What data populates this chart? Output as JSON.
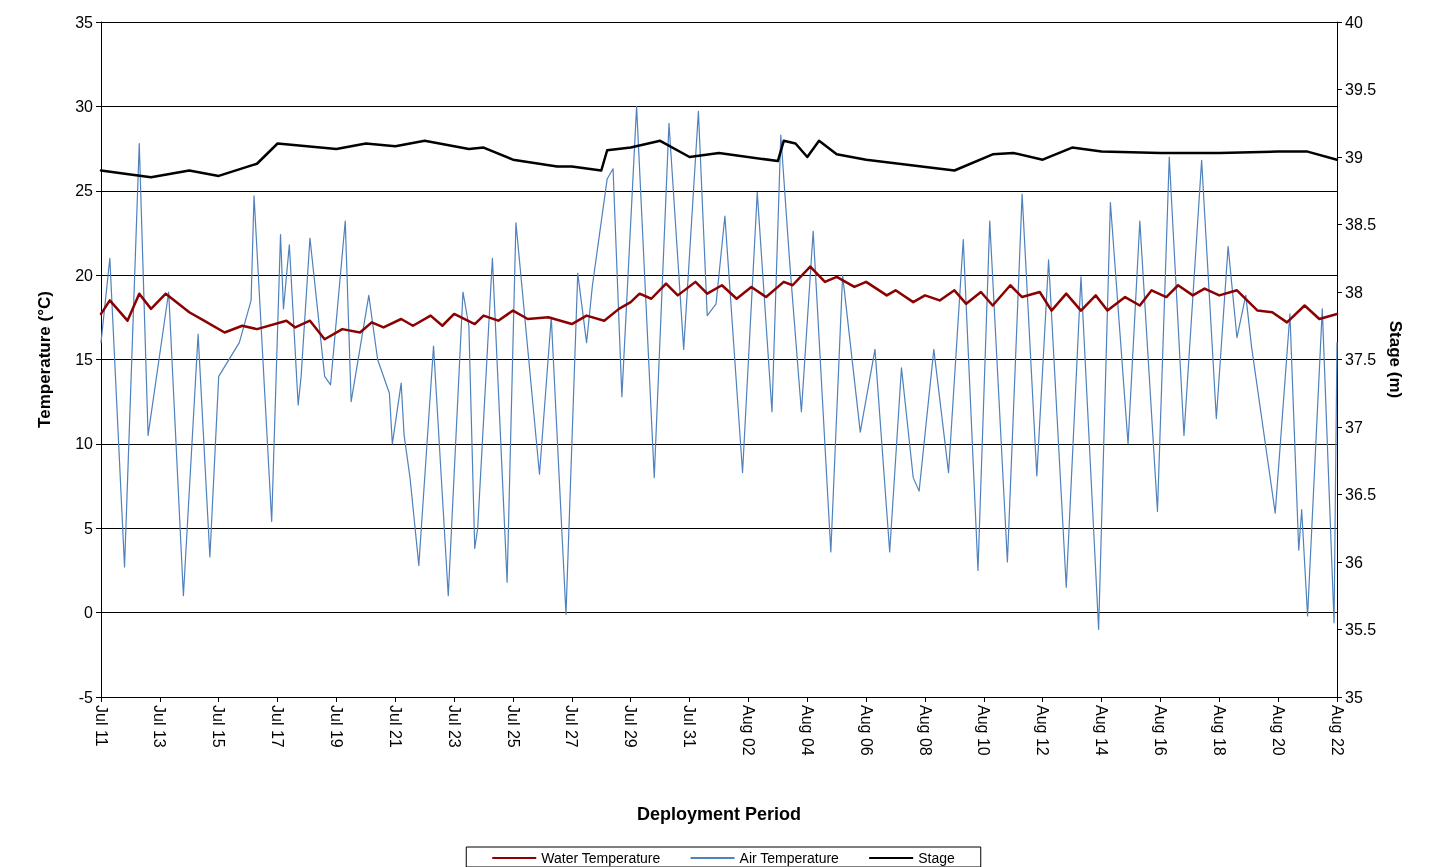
{
  "chart_data": {
    "type": "line",
    "xlabel": "Deployment Period",
    "ylabel": "Temperature (°C)",
    "y2label": "Stage (m)",
    "xlim": [
      "--07-11",
      "--08-22"
    ],
    "xticks": [
      {
        "value": "--07-11",
        "label": "Jul 11"
      },
      {
        "value": "--07-13",
        "label": "Jul 13"
      },
      {
        "value": "--07-15",
        "label": "Jul 15"
      },
      {
        "value": "--07-17",
        "label": "Jul 17"
      },
      {
        "value": "--07-19",
        "label": "Jul 19"
      },
      {
        "value": "--07-21",
        "label": "Jul 21"
      },
      {
        "value": "--07-23",
        "label": "Jul 23"
      },
      {
        "value": "--07-25",
        "label": "Jul 25"
      },
      {
        "value": "--07-27",
        "label": "Jul 27"
      },
      {
        "value": "--07-29",
        "label": "Jul 29"
      },
      {
        "value": "--07-31",
        "label": "Jul 31"
      },
      {
        "value": "--08-02",
        "label": "Aug 02"
      },
      {
        "value": "--08-04",
        "label": "Aug 04"
      },
      {
        "value": "--08-06",
        "label": "Aug 06"
      },
      {
        "value": "--08-08",
        "label": "Aug 08"
      },
      {
        "value": "--08-10",
        "label": "Aug 10"
      },
      {
        "value": "--08-12",
        "label": "Aug 12"
      },
      {
        "value": "--08-14",
        "label": "Aug 14"
      },
      {
        "value": "--08-16",
        "label": "Aug 16"
      },
      {
        "value": "--08-18",
        "label": "Aug 18"
      },
      {
        "value": "--08-20",
        "label": "Aug 20"
      },
      {
        "value": "--08-22",
        "label": "Aug 22"
      }
    ],
    "ylim": [
      -5,
      35
    ],
    "yticks": [
      -5,
      0,
      5,
      10,
      15,
      20,
      25,
      30,
      35
    ],
    "y2lim": [
      35,
      40
    ],
    "y2ticks": [
      35,
      35.5,
      36,
      36.5,
      37,
      37.5,
      38,
      38.5,
      39,
      39.5,
      40
    ],
    "grid": "y",
    "legend": "bottom",
    "marker": "none",
    "line_style": "solid",
    "series": [
      {
        "name": "Water Temperature",
        "color": "#8b0000",
        "x": [
          "--07-11T00:00",
          "--07-11T07:12",
          "--07-11T21:36",
          "--07-12T07:12",
          "--07-12T16:48",
          "--07-13T04:48",
          "--07-14T00:00",
          "--07-14T12:00",
          "--07-15T04:48",
          "--07-15T19:12",
          "--07-16T07:12",
          "--07-17T07:12",
          "--07-17T14:24",
          "--07-18T02:24",
          "--07-18T14:24",
          "--07-19T04:48",
          "--07-19T19:12",
          "--07-20T04:48",
          "--07-20T14:24",
          "--07-21T04:48",
          "--07-21T14:24",
          "--07-22T04:48",
          "--07-22T14:24",
          "--07-23T00:00",
          "--07-23T16:48",
          "--07-24T00:00",
          "--07-24T12:00",
          "--07-25T00:00",
          "--07-25T12:00",
          "--07-26T04:48",
          "--07-27T00:00",
          "--07-27T12:00",
          "--07-28T02:24",
          "--07-28T14:24",
          "--07-29T00:00",
          "--07-29T07:12",
          "--07-29T16:48",
          "--07-30T04:48",
          "--07-30T14:24",
          "--07-31T04:48",
          "--07-31T14:24",
          "--08-01T02:24",
          "--08-01T14:24",
          "--08-02T02:24",
          "--08-02T14:24",
          "--08-03T04:48",
          "--08-03T12:00",
          "--08-04T02:24",
          "--08-04T14:24",
          "--08-05T00:00",
          "--08-05T14:24",
          "--08-06T00:00",
          "--08-06T16:48",
          "--08-07T00:00",
          "--08-07T14:24",
          "--08-08T00:00",
          "--08-08T12:00",
          "--08-09T00:00",
          "--08-09T09:36",
          "--08-09T21:36",
          "--08-10T07:12",
          "--08-10T21:36",
          "--08-11T07:12",
          "--08-11T21:36",
          "--08-12T07:12",
          "--08-12T19:12",
          "--08-13T07:12",
          "--08-13T19:12",
          "--08-14T04:48",
          "--08-14T19:12",
          "--08-15T07:12",
          "--08-15T16:48",
          "--08-16T04:48",
          "--08-16T14:24",
          "--08-17T02:24",
          "--08-17T12:00",
          "--08-18T00:00",
          "--08-18T14:24",
          "--08-19T07:12",
          "--08-19T19:12",
          "--08-20T07:12",
          "--08-20T21:36",
          "--08-21T09:36",
          "--08-22T00:00"
        ],
        "values": [
          17.7,
          18.5,
          17.3,
          18.9,
          18,
          18.9,
          17.8,
          17.3,
          16.6,
          17,
          16.8,
          17.3,
          16.9,
          17.3,
          16.2,
          16.8,
          16.6,
          17.2,
          16.9,
          17.4,
          17,
          17.6,
          17,
          17.7,
          17.1,
          17.6,
          17.3,
          17.9,
          17.4,
          17.5,
          17.1,
          17.6,
          17.3,
          18,
          18.4,
          18.9,
          18.6,
          19.5,
          18.8,
          19.6,
          18.9,
          19.4,
          18.6,
          19.3,
          18.7,
          19.6,
          19.4,
          20.5,
          19.6,
          19.9,
          19.3,
          19.6,
          18.8,
          19.1,
          18.4,
          18.8,
          18.5,
          19.1,
          18.3,
          19,
          18.2,
          19.4,
          18.7,
          19,
          17.9,
          18.9,
          17.9,
          18.8,
          17.9,
          18.7,
          18.2,
          19.1,
          18.7,
          19.4,
          18.8,
          19.2,
          18.8,
          19.1,
          17.9,
          17.8,
          17.2,
          18.2,
          17.4,
          17.7
        ]
      },
      {
        "name": "Air Temperature",
        "color": "#4f81bd",
        "x": [
          "--07-11T00:00",
          "--07-11T07:12",
          "--07-11T19:12",
          "--07-12T07:12",
          "--07-12T14:24",
          "--07-13T07:12",
          "--07-13T19:12",
          "--07-14T07:12",
          "--07-14T16:48",
          "--07-15T00:00",
          "--07-15T16:48",
          "--07-16T02:24",
          "--07-16T04:48",
          "--07-16T19:12",
          "--07-17T02:24",
          "--07-17T04:48",
          "--07-17T09:36",
          "--07-17T16:48",
          "--07-17T19:12",
          "--07-18T02:24",
          "--07-18T14:24",
          "--07-18T19:12",
          "--07-19T07:12",
          "--07-19T12:00",
          "--07-20T02:24",
          "--07-20T09:36",
          "--07-20T19:12",
          "--07-20T21:36",
          "--07-21T04:48",
          "--07-21T07:12",
          "--07-21T12:00",
          "--07-21T19:12",
          "--07-22T07:12",
          "--07-22T19:12",
          "--07-23T07:12",
          "--07-23T12:00",
          "--07-23T16:48",
          "--07-23T19:12",
          "--07-24T07:12",
          "--07-24T19:12",
          "--07-25T02:24",
          "--07-25T21:36",
          "--07-26T07:12",
          "--07-26T19:12",
          "--07-27T04:48",
          "--07-27T12:00",
          "--07-27T16:48",
          "--07-28T04:48",
          "--07-28T09:36",
          "--07-28T16:48",
          "--07-29T04:48",
          "--07-29T19:12",
          "--07-30T07:12",
          "--07-30T19:12",
          "--07-31T07:12",
          "--07-31T14:24",
          "--07-31T21:36",
          "--08-01T04:48",
          "--08-01T19:12",
          "--08-02T07:12",
          "--08-02T19:12",
          "--08-03T02:24",
          "--08-03T09:36",
          "--08-03T19:12",
          "--08-04T04:48",
          "--08-04T19:12",
          "--08-05T04:48",
          "--08-05T19:12",
          "--08-06T07:12",
          "--08-06T19:12",
          "--08-07T04:48",
          "--08-07T14:24",
          "--08-07T19:12",
          "--08-08T07:12",
          "--08-08T19:12",
          "--08-09T07:12",
          "--08-09T19:12",
          "--08-10T04:48",
          "--08-10T19:12",
          "--08-11T07:12",
          "--08-11T19:12",
          "--08-12T04:48",
          "--08-12T19:12",
          "--08-13T07:12",
          "--08-13T21:36",
          "--08-14T07:12",
          "--08-14T21:36",
          "--08-15T07:12",
          "--08-15T21:36",
          "--08-16T07:12",
          "--08-16T19:12",
          "--08-17T09:36",
          "--08-17T21:36",
          "--08-18T07:12",
          "--08-18T14:24",
          "--08-18T21:36",
          "--08-19T02:24",
          "--08-19T21:36",
          "--08-20T09:36",
          "--08-20T16:48",
          "--08-20T19:12",
          "--08-21T00:00",
          "--08-21T12:00",
          "--08-21T21:36",
          "--08-22T00:00"
        ],
        "values": [
          16,
          21,
          2.7,
          27.8,
          10.5,
          19,
          1,
          16.5,
          3.3,
          14,
          16,
          18.5,
          24.7,
          5.4,
          22.4,
          18,
          21.8,
          12.3,
          14,
          22.2,
          14,
          13.5,
          23.2,
          12.5,
          18.8,
          15,
          13,
          10,
          13.6,
          10.5,
          8,
          2.8,
          15.8,
          1,
          19,
          17,
          3.8,
          5,
          21,
          1.8,
          23.1,
          8.2,
          17.5,
          -0.1,
          20.1,
          16,
          19.4,
          25.7,
          26.3,
          12.8,
          30,
          8,
          29,
          15.6,
          29.7,
          17.6,
          18.3,
          23.5,
          8.3,
          24.9,
          11.9,
          28.3,
          20.8,
          11.9,
          22.6,
          3.6,
          20,
          10.7,
          15.6,
          3.6,
          14.5,
          8,
          7.2,
          15.6,
          8.3,
          22.1,
          2.5,
          23.2,
          3,
          24.8,
          8.1,
          20.9,
          1.5,
          19.9,
          -1,
          24.3,
          10,
          23.2,
          6,
          27,
          10.5,
          26.8,
          11.5,
          21.7,
          16.3,
          18.8,
          15.7,
          5.9,
          17.7,
          3.7,
          6.1,
          -0.2,
          18,
          -0.6,
          16
        ]
      },
      {
        "name": "Stage",
        "color": "#000000",
        "axis": "y2",
        "x": [
          "--07-11T00:00",
          "--07-12T00:00",
          "--07-12T16:48",
          "--07-14T00:00",
          "--07-15T00:00",
          "--07-16T07:12",
          "--07-17T00:00",
          "--07-18T00:00",
          "--07-19T00:00",
          "--07-20T00:00",
          "--07-21T00:00",
          "--07-22T00:00",
          "--07-23T12:00",
          "--07-24T00:00",
          "--07-25T00:00",
          "--07-26T12:00",
          "--07-27T00:00",
          "--07-28T00:00",
          "--07-28T04:48",
          "--07-29T00:00",
          "--07-30T00:00",
          "--07-31T00:00",
          "--08-01T00:00",
          "--08-03T00:00",
          "--08-03T04:48",
          "--08-03T14:24",
          "--08-04T00:00",
          "--08-04T09:36",
          "--08-05T00:00",
          "--08-06T00:00",
          "--08-09T00:00",
          "--08-10T07:12",
          "--08-11T00:00",
          "--08-12T00:00",
          "--08-13T00:00",
          "--08-14T00:00",
          "--08-16T00:00",
          "--08-18T00:00",
          "--08-20T00:00",
          "--08-21T00:00",
          "--08-22T00:00"
        ],
        "values": [
          38.9,
          38.87,
          38.85,
          38.9,
          38.86,
          38.95,
          39.1,
          39.08,
          39.06,
          39.1,
          39.08,
          39.12,
          39.06,
          39.07,
          38.98,
          38.93,
          38.93,
          38.9,
          39.05,
          39.07,
          39.12,
          39,
          39.03,
          38.97,
          39.12,
          39.1,
          39,
          39.12,
          39.02,
          38.98,
          38.9,
          39.02,
          39.03,
          38.98,
          39.07,
          39.04,
          39.03,
          39.03,
          39.04,
          39.04,
          38.98
        ]
      }
    ]
  }
}
